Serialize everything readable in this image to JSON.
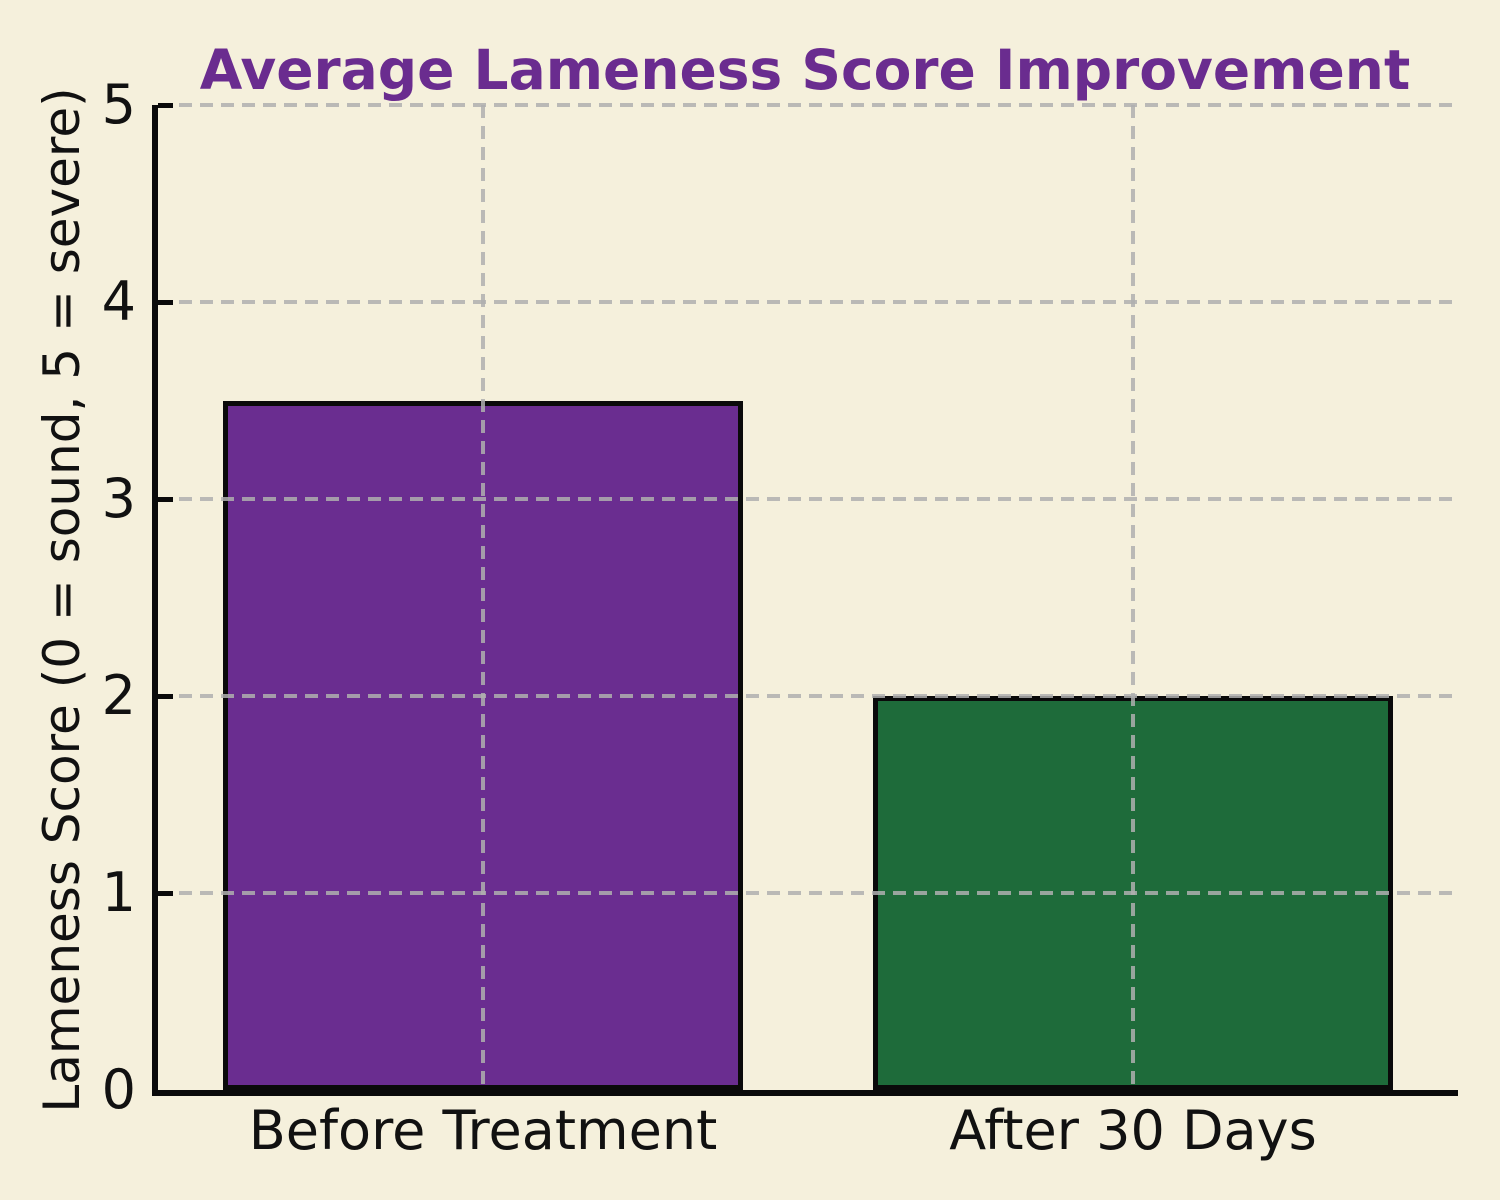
{
  "chart_data": {
    "type": "bar",
    "title": "Average Lameness Score Improvement",
    "xlabel": "",
    "ylabel": "Lameness Score (0 = sound, 5 = severe)",
    "categories": [
      "Before Treatment",
      "After 30 Days"
    ],
    "values": [
      3.5,
      2.0
    ],
    "bar_colors": [
      "#6A2D90",
      "#1E6B3A"
    ],
    "bar_edge_color": "#0A0A0A",
    "ylim": [
      0,
      5
    ],
    "yticks": [
      0,
      1,
      2,
      3,
      4,
      5
    ],
    "ytick_labels": [
      "0",
      "1",
      "2",
      "3",
      "4",
      "5"
    ],
    "grid": "dashed, horizontal at each y tick and vertical at each bar center, drawn above bars",
    "legend": "none",
    "colors": {
      "background": "#F5F0DC",
      "title": "#6A2C8F",
      "grid": "#AFAFAF",
      "axis": "#0A0A0A",
      "text": "#111111"
    }
  }
}
